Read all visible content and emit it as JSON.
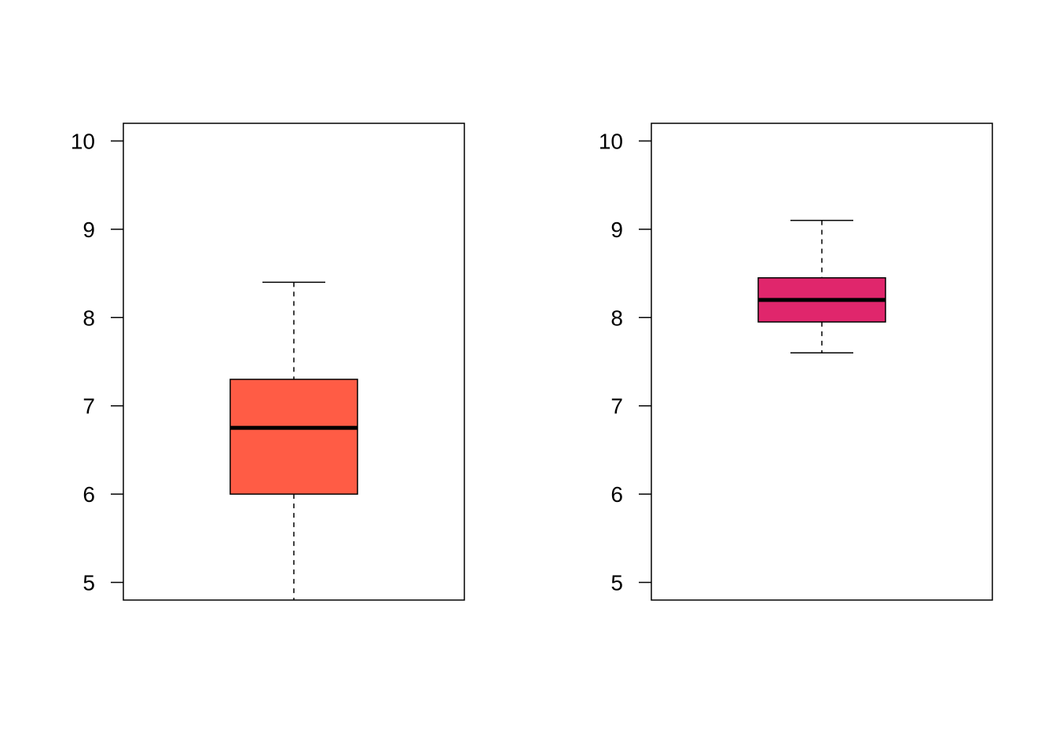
{
  "chart_data": [
    {
      "type": "box",
      "title": "",
      "xlabel": "",
      "ylabel": "",
      "ylim": [
        4.8,
        10.2
      ],
      "yticks": [
        "5",
        "6",
        "7",
        "8",
        "9",
        "10"
      ],
      "box": {
        "whisker_low": 4.8,
        "q1": 6.0,
        "median": 6.75,
        "q3": 7.3,
        "whisker_high": 8.4
      },
      "fill_color": "#FF5C45"
    },
    {
      "type": "box",
      "title": "",
      "xlabel": "",
      "ylabel": "",
      "ylim": [
        4.8,
        10.2
      ],
      "yticks": [
        "5",
        "6",
        "7",
        "8",
        "9",
        "10"
      ],
      "box": {
        "whisker_low": 7.6,
        "q1": 7.95,
        "median": 8.2,
        "q3": 8.45,
        "whisker_high": 9.1
      },
      "fill_color": "#E0266C"
    }
  ]
}
